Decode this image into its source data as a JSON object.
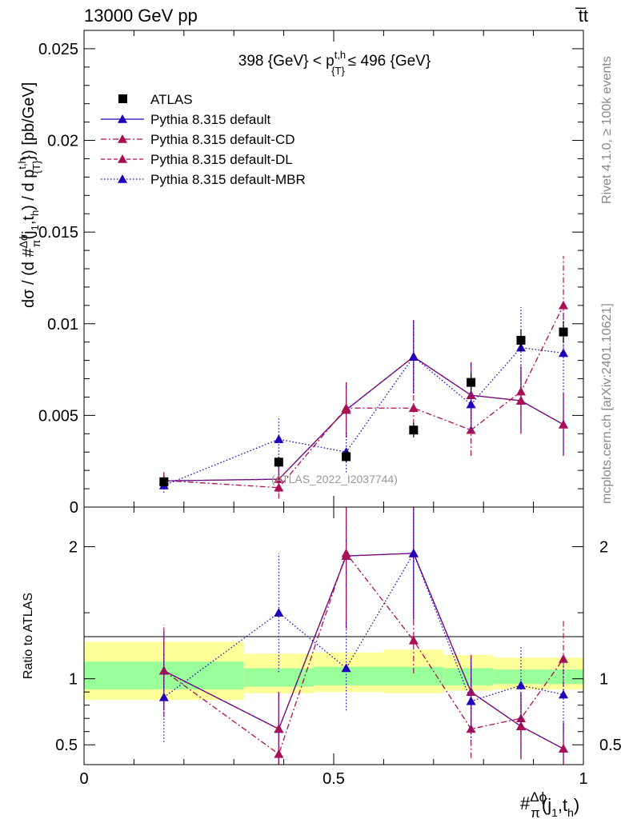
{
  "header": {
    "left": "13000 GeV pp",
    "right": "t̅t"
  },
  "side_labels": {
    "rivet": "Rivet 4.1.0, ≥ 100k events",
    "mcplots": "mcplots.cern.ch [arXiv:2401.10621]"
  },
  "chart_data": [
    {
      "type": "scatter",
      "panel": "main",
      "title": "398 {GeV} < p_{T}^{t,h} ≤ 496 {GeV}",
      "title_parts": {
        "pre": "398 {GeV} < p",
        "sup": "t,h",
        "sub": "{T}",
        "post": "≤ 496 {GeV}"
      },
      "watermark": "(ATLAS_2022_I2037744)",
      "ylabel": "dσ / (d #frac{Δϕ}{π}(j1,th) / d p_T^{t,h}) [pb/GeV]",
      "ylabel_parts": {
        "a": "dσ / (d #",
        "frac_num": "Δϕ",
        "frac_den": "π",
        "b": "(j",
        "b_sub": "1",
        "c": ",t",
        "c_sub": "h",
        "d": ") / d p",
        "d_sup": "t,h",
        "d_sub": "{T}",
        "e": "}) [pb/GeV]"
      },
      "xlim": [
        0,
        1
      ],
      "ylim": [
        0,
        0.026
      ],
      "yticks": [
        {
          "value": 0,
          "label": "0"
        },
        {
          "value": 0.005,
          "label": "0.005"
        },
        {
          "value": 0.01,
          "label": "0.01"
        },
        {
          "value": 0.015,
          "label": "0.015"
        },
        {
          "value": 0.02,
          "label": "0.02"
        },
        {
          "value": 0.025,
          "label": "0.025"
        }
      ],
      "x_bin_centers": [
        0.16,
        0.39,
        0.525,
        0.66,
        0.775,
        0.875,
        0.96
      ],
      "series": [
        {
          "name": "ATLAS",
          "color": "#000000",
          "style": "data",
          "y": [
            0.00138,
            0.00245,
            0.00275,
            0.0042,
            0.0068,
            0.0091,
            0.00955
          ],
          "yerr": [
            0.0002,
            0.0003,
            0.0003,
            0.0004,
            0.0005,
            0.0006,
            0.0006
          ]
        },
        {
          "name": "Pythia 8.315 default",
          "color": "#2200bb",
          "style": "solid",
          "y": [
            0.00143,
            0.00152,
            0.0053,
            0.0082,
            0.0061,
            0.0058,
            0.0045
          ],
          "yerr": [
            0.0004,
            0.0007,
            0.0015,
            0.002,
            0.0018,
            0.0018,
            0.0017
          ]
        },
        {
          "name": "Pythia 8.315 default-CD",
          "color": "#aa1155",
          "style": "dashdot",
          "y": [
            0.00145,
            0.00106,
            0.0054,
            0.0054,
            0.0042,
            0.0063,
            0.011
          ],
          "yerr": [
            0.0005,
            0.0006,
            0.0014,
            0.0009,
            0.0014,
            0.0014,
            0.0027
          ]
        },
        {
          "name": "Pythia 8.315 default-DL",
          "color": "#aa1155",
          "style": "dashed",
          "y": [
            0.00143,
            0.00152,
            0.0053,
            0.0082,
            0.0061,
            0.0058,
            0.0045
          ],
          "yerr": [
            0.0004,
            0.0007,
            0.0015,
            0.002,
            0.0018,
            0.0018,
            0.0017
          ]
        },
        {
          "name": "Pythia 8.315 default-MBR",
          "color": "#2200bb",
          "style": "dotted",
          "y": [
            0.00118,
            0.0037,
            0.003,
            0.0082,
            0.0056,
            0.0087,
            0.0084
          ],
          "yerr": [
            0.0004,
            0.0012,
            0.0011,
            0.002,
            0.0015,
            0.0022,
            0.0022
          ]
        }
      ]
    },
    {
      "type": "scatter",
      "panel": "ratio",
      "ylabel": "Ratio to ATLAS",
      "xlabel": "#Δϕ/π(j1,th)",
      "xlabel_parts": {
        "a": "#",
        "frac_num": "Δϕ",
        "frac_den": "π",
        "b": "(j",
        "b_sub": "1",
        "c": ",t",
        "c_sub": "h",
        "d": ")"
      },
      "xlim": [
        0,
        1
      ],
      "ylim": [
        0.35,
        2.3
      ],
      "xticks": [
        {
          "value": 0,
          "label": "0"
        },
        {
          "value": 0.5,
          "label": "0.5"
        },
        {
          "value": 1,
          "label": "1"
        }
      ],
      "yticks": [
        {
          "value": 0.5,
          "label": "0.5"
        },
        {
          "value": 1,
          "label": "1"
        },
        {
          "value": 2,
          "label": "2"
        }
      ],
      "bands": [
        {
          "x0": 0,
          "x1": 0.32,
          "yellow": [
            0.84,
            1.28
          ],
          "green": [
            0.92,
            1.13
          ]
        },
        {
          "x0": 0.32,
          "x1": 0.46,
          "yellow": [
            0.89,
            1.19
          ],
          "green": [
            0.94,
            1.08
          ]
        },
        {
          "x0": 0.46,
          "x1": 0.6,
          "yellow": [
            0.9,
            1.2
          ],
          "green": [
            0.95,
            1.09
          ]
        },
        {
          "x0": 0.6,
          "x1": 0.72,
          "yellow": [
            0.89,
            1.22
          ],
          "green": [
            0.95,
            1.09
          ]
        },
        {
          "x0": 0.72,
          "x1": 0.82,
          "yellow": [
            0.91,
            1.18
          ],
          "green": [
            0.95,
            1.08
          ]
        },
        {
          "x0": 0.82,
          "x1": 0.92,
          "yellow": [
            0.92,
            1.16
          ],
          "green": [
            0.96,
            1.07
          ]
        },
        {
          "x0": 0.92,
          "x1": 1,
          "yellow": [
            0.92,
            1.16
          ],
          "green": [
            0.96,
            1.07
          ]
        }
      ],
      "series": [
        {
          "name": "Pythia 8.315 default",
          "color": "#2200bb",
          "style": "solid",
          "y": [
            1.06,
            0.62,
            1.93,
            1.95,
            0.9,
            0.64,
            0.47
          ],
          "yerr": [
            0.3,
            0.28,
            0.55,
            0.5,
            0.28,
            0.25,
            0.2
          ]
        },
        {
          "name": "Pythia 8.315 default-CD",
          "color": "#aa1155",
          "style": "dashdot",
          "y": [
            1.06,
            0.43,
            1.95,
            1.29,
            0.62,
            0.7,
            1.15
          ],
          "yerr": [
            0.35,
            0.25,
            0.5,
            0.25,
            0.22,
            0.2,
            0.3
          ]
        },
        {
          "name": "Pythia 8.315 default-DL",
          "color": "#aa1155",
          "style": "dashed",
          "y": [
            1.06,
            0.62,
            1.93,
            1.95,
            0.9,
            0.64,
            0.47
          ],
          "yerr": [
            0.3,
            0.28,
            0.55,
            0.5,
            0.28,
            0.25,
            0.2
          ]
        },
        {
          "name": "Pythia 8.315 default-MBR",
          "color": "#2200bb",
          "style": "dotted",
          "y": [
            0.86,
            1.5,
            1.08,
            1.95,
            0.83,
            0.95,
            0.88
          ],
          "yerr": [
            0.34,
            0.45,
            0.32,
            0.5,
            0.3,
            0.3,
            0.28
          ]
        }
      ]
    }
  ]
}
